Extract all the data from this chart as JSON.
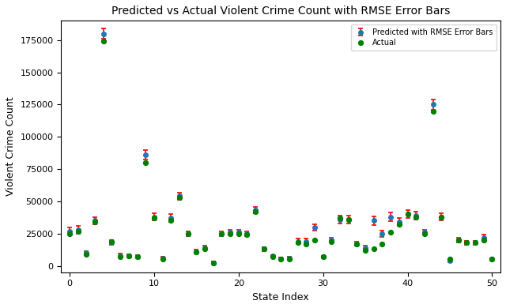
{
  "title": "Predicted vs Actual Violent Crime Count with RMSE Error Bars",
  "xlabel": "State Index",
  "ylabel": "Violent Crime Count",
  "actual": [
    25000,
    27000,
    9000,
    34000,
    174000,
    19000,
    7000,
    8000,
    7000,
    80000,
    37000,
    5000,
    35000,
    53000,
    25000,
    11000,
    13000,
    2000,
    25000,
    25000,
    25000,
    24000,
    42000,
    13000,
    7000,
    5000,
    5000,
    18000,
    17000,
    20000,
    7000,
    19000,
    37000,
    36000,
    17000,
    12000,
    13000,
    17000,
    26000,
    32000,
    40000,
    38000,
    25000,
    120000,
    38000,
    5000,
    20000,
    18000,
    18000,
    20000,
    5000
  ],
  "predicted": [
    27000,
    28000,
    10000,
    35000,
    180000,
    18000,
    8000,
    8000,
    7000,
    86000,
    38000,
    6000,
    37000,
    54000,
    25000,
    11000,
    14000,
    2500,
    25000,
    26000,
    26000,
    25000,
    43000,
    13000,
    7500,
    5500,
    6000,
    19000,
    19000,
    30000,
    7000,
    20000,
    36000,
    36000,
    17000,
    14000,
    35000,
    25000,
    38000,
    34000,
    40000,
    39000,
    26000,
    125000,
    38000,
    4000,
    20000,
    18000,
    18000,
    22000,
    5000
  ],
  "rmse": [
    3000,
    3000,
    1500,
    3000,
    4000,
    2000,
    1500,
    1200,
    1200,
    3500,
    3000,
    1000,
    3000,
    3000,
    2000,
    1500,
    1500,
    800,
    2000,
    2000,
    2000,
    2000,
    2500,
    1500,
    1000,
    1000,
    1000,
    2000,
    2000,
    2500,
    1000,
    2000,
    3000,
    3000,
    1500,
    1500,
    3500,
    2500,
    3500,
    3000,
    3000,
    3000,
    2000,
    4000,
    3000,
    1000,
    1800,
    1500,
    1500,
    2000,
    1000
  ],
  "actual_color": "#008000",
  "predicted_color": "#1f77b4",
  "errorbar_color": "red",
  "legend_actual": "Actual",
  "legend_predicted": "Predicted with RMSE Error Bars",
  "title_fontsize": 10,
  "label_fontsize": 9,
  "tick_fontsize": 8,
  "background_color": "#ffffff",
  "xlim": [
    -1,
    51
  ],
  "ylim": [
    -5000,
    190000
  ]
}
